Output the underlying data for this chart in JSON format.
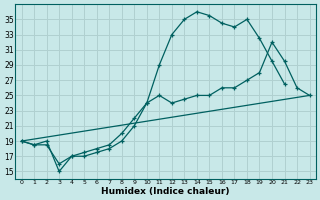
{
  "xlabel": "Humidex (Indice chaleur)",
  "background_color": "#c8e8e8",
  "grid_color": "#b0d0d0",
  "line_color": "#006060",
  "xlim": [
    -0.5,
    23.5
  ],
  "ylim": [
    14,
    37
  ],
  "yticks": [
    15,
    17,
    19,
    21,
    23,
    25,
    27,
    29,
    31,
    33,
    35
  ],
  "xticks": [
    0,
    1,
    2,
    3,
    4,
    5,
    6,
    7,
    8,
    9,
    10,
    11,
    12,
    13,
    14,
    15,
    16,
    17,
    18,
    19,
    20,
    21,
    22,
    23
  ],
  "series1_x": [
    0,
    1,
    2,
    3,
    4,
    5,
    6,
    7,
    8,
    9,
    10,
    11,
    12,
    13,
    14,
    15,
    16,
    17,
    18,
    19,
    20,
    21
  ],
  "series1_y": [
    19,
    18.5,
    19,
    15,
    17,
    17,
    17.5,
    18,
    19,
    21,
    24,
    29,
    33,
    35,
    36,
    35.5,
    34.5,
    34,
    35,
    32.5,
    29.5,
    26.5
  ],
  "series2_x": [
    0,
    1,
    2,
    3,
    4,
    5,
    6,
    7,
    8,
    9,
    10,
    11,
    12,
    13,
    14,
    15,
    16,
    17,
    18,
    19,
    20,
    21,
    22,
    23
  ],
  "series2_y": [
    19,
    18.5,
    18.5,
    16,
    17,
    17.5,
    18,
    18.5,
    20,
    22,
    24,
    25,
    24,
    24.5,
    25,
    25,
    26,
    26,
    27,
    28,
    32,
    29.5,
    26,
    25
  ],
  "series3_x": [
    0,
    23
  ],
  "series3_y": [
    19,
    25
  ]
}
